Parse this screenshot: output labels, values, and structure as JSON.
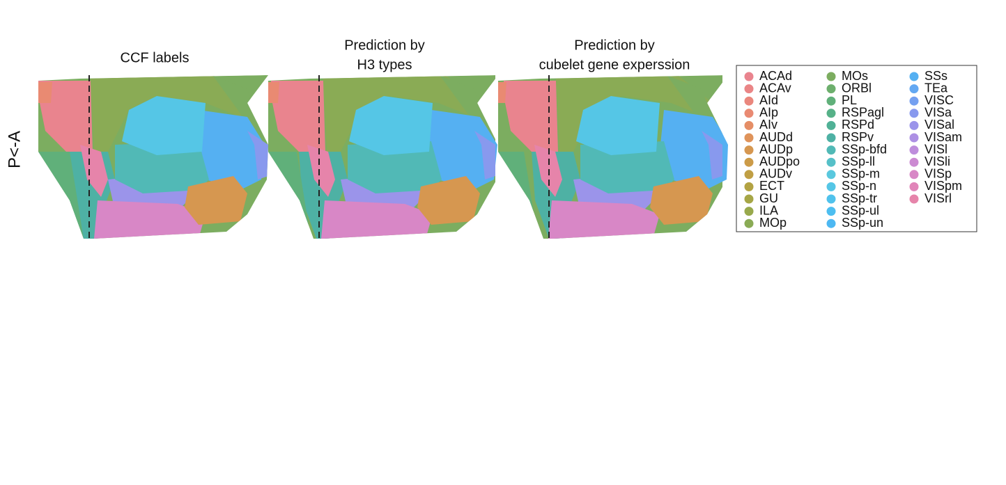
{
  "y_label": "P<-A",
  "panels": [
    {
      "title_lines": [
        "CCF labels"
      ]
    },
    {
      "title_lines": [
        "Prediction by",
        "H3 types"
      ]
    },
    {
      "title_lines": [
        "Prediction by",
        "cubelet gene experssion"
      ]
    }
  ],
  "legend": {
    "items": [
      {
        "label": "ACAd",
        "color": "#E9848E"
      },
      {
        "label": "ACAv",
        "color": "#EA8586"
      },
      {
        "label": "AId",
        "color": "#EA877D"
      },
      {
        "label": "AIp",
        "color": "#E98A72"
      },
      {
        "label": "AIv",
        "color": "#E58E66"
      },
      {
        "label": "AUDd",
        "color": "#DF935A"
      },
      {
        "label": "AUDp",
        "color": "#D69750"
      },
      {
        "label": "AUDpo",
        "color": "#CC9B48"
      },
      {
        "label": "AUDv",
        "color": "#C09F44"
      },
      {
        "label": "ECT",
        "color": "#B3A343"
      },
      {
        "label": "GU",
        "color": "#A6A646"
      },
      {
        "label": "ILA",
        "color": "#98A94C"
      },
      {
        "label": "MOp",
        "color": "#8AAB55"
      },
      {
        "label": "MOs",
        "color": "#7CAD60"
      },
      {
        "label": "ORBl",
        "color": "#6DAF6D"
      },
      {
        "label": "PL",
        "color": "#60B07A"
      },
      {
        "label": "RSPagl",
        "color": "#56B188"
      },
      {
        "label": "RSPd",
        "color": "#50B196"
      },
      {
        "label": "RSPv",
        "color": "#4EB1A4"
      },
      {
        "label": "SSp-bfd",
        "color": "#51B9B6"
      },
      {
        "label": "SSp-ll",
        "color": "#56C0C8"
      },
      {
        "label": "SSp-m",
        "color": "#5AC8DE"
      },
      {
        "label": "SSp-n",
        "color": "#55C6E6"
      },
      {
        "label": "SSp-tr",
        "color": "#50C2EC"
      },
      {
        "label": "SSp-ul",
        "color": "#4DBEF0"
      },
      {
        "label": "SSp-un",
        "color": "#4DB8F2"
      },
      {
        "label": "SSs",
        "color": "#55B0F2"
      },
      {
        "label": "TEa",
        "color": "#63A8F2"
      },
      {
        "label": "VISC",
        "color": "#75A0F0"
      },
      {
        "label": "VISa",
        "color": "#8899EE"
      },
      {
        "label": "VISal",
        "color": "#9B94EA"
      },
      {
        "label": "VISam",
        "color": "#AD90E4"
      },
      {
        "label": "VISl",
        "color": "#BE8DDC"
      },
      {
        "label": "VISli",
        "color": "#CC8AD2"
      },
      {
        "label": "VISp",
        "color": "#D887C6"
      },
      {
        "label": "VISpm",
        "color": "#E185B9"
      },
      {
        "label": "VISrl",
        "color": "#E684AA"
      }
    ]
  }
}
